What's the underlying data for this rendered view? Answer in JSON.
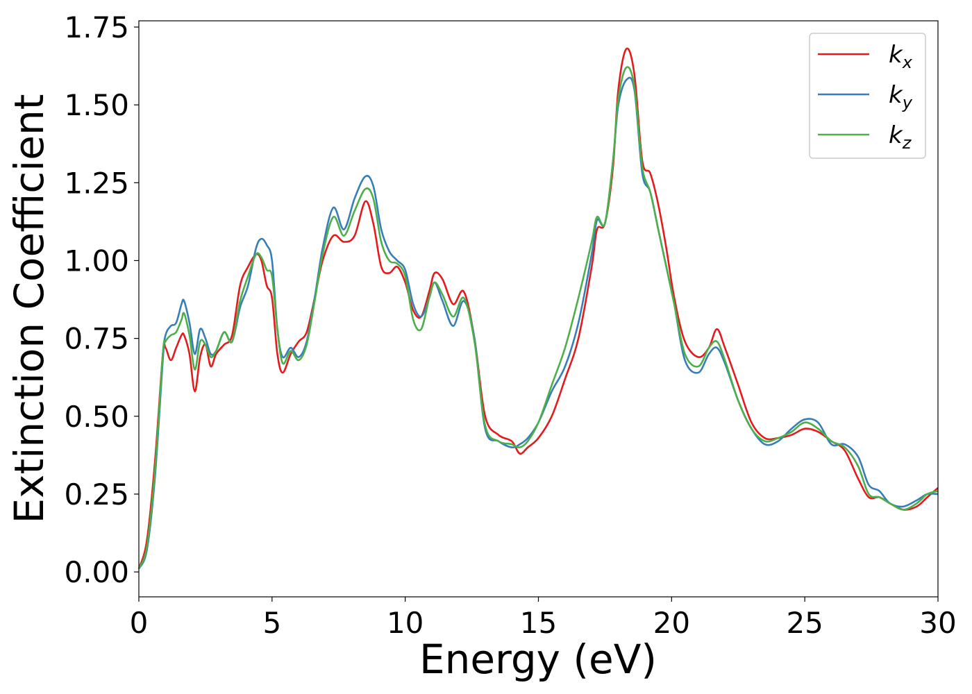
{
  "chart_data": {
    "type": "line",
    "title": "",
    "xlabel": "Energy (eV)",
    "ylabel": "Extinction Coefficient",
    "xlim": [
      0,
      30
    ],
    "ylim": [
      -0.08,
      1.77
    ],
    "xticks": [
      0,
      5,
      10,
      15,
      20,
      25,
      30
    ],
    "xtick_labels": [
      "0",
      "5",
      "10",
      "15",
      "20",
      "25",
      "30"
    ],
    "yticks": [
      0.0,
      0.25,
      0.5,
      0.75,
      1.0,
      1.25,
      1.5,
      1.75
    ],
    "ytick_labels": [
      "0.00",
      "0.25",
      "0.50",
      "0.75",
      "1.00",
      "1.25",
      "1.50",
      "1.75"
    ],
    "grid": false,
    "legend_position": "top-right",
    "series": [
      {
        "name": "k_x",
        "label_main": "k",
        "label_sub": "x",
        "color": "#e41a1c",
        "x": [
          0,
          0.3,
          0.6,
          0.9,
          1.0,
          1.2,
          1.4,
          1.6,
          1.7,
          1.9,
          2.1,
          2.3,
          2.5,
          2.7,
          2.9,
          3.2,
          3.5,
          3.8,
          4.1,
          4.4,
          4.6,
          4.8,
          5.0,
          5.2,
          5.4,
          5.7,
          6.0,
          6.3,
          6.6,
          6.9,
          7.3,
          7.7,
          8.1,
          8.5,
          8.8,
          9.1,
          9.4,
          9.7,
          10.0,
          10.3,
          10.6,
          10.9,
          11.1,
          11.4,
          11.8,
          12.2,
          12.6,
          13.0,
          13.5,
          14.0,
          14.3,
          14.6,
          15.0,
          15.5,
          16.0,
          16.5,
          17.0,
          17.2,
          17.5,
          17.8,
          18.0,
          18.3,
          18.6,
          18.9,
          19.2,
          19.5,
          19.8,
          20.1,
          20.5,
          21.0,
          21.4,
          21.7,
          22.0,
          22.5,
          23.0,
          23.5,
          24.0,
          24.5,
          25.0,
          25.5,
          26.0,
          26.5,
          27.0,
          27.4,
          27.8,
          28.2,
          28.7,
          29.2,
          29.6,
          30.0
        ],
        "values": [
          0.01,
          0.1,
          0.35,
          0.7,
          0.72,
          0.68,
          0.72,
          0.76,
          0.76,
          0.7,
          0.58,
          0.69,
          0.73,
          0.66,
          0.7,
          0.73,
          0.76,
          0.92,
          0.98,
          1.02,
          1.0,
          0.92,
          0.88,
          0.7,
          0.64,
          0.7,
          0.74,
          0.77,
          0.88,
          1.0,
          1.08,
          1.06,
          1.08,
          1.19,
          1.12,
          0.98,
          0.96,
          0.98,
          0.93,
          0.84,
          0.82,
          0.9,
          0.96,
          0.94,
          0.86,
          0.9,
          0.75,
          0.5,
          0.44,
          0.42,
          0.38,
          0.4,
          0.43,
          0.5,
          0.62,
          0.75,
          0.98,
          1.1,
          1.12,
          1.3,
          1.55,
          1.68,
          1.6,
          1.32,
          1.28,
          1.18,
          1.04,
          0.88,
          0.74,
          0.69,
          0.72,
          0.78,
          0.72,
          0.6,
          0.48,
          0.43,
          0.43,
          0.44,
          0.46,
          0.45,
          0.42,
          0.39,
          0.3,
          0.24,
          0.24,
          0.22,
          0.2,
          0.21,
          0.24,
          0.27
        ]
      },
      {
        "name": "k_y",
        "label_main": "k",
        "label_sub": "y",
        "color": "#377eb8",
        "x": [
          0,
          0.3,
          0.6,
          0.9,
          1.0,
          1.2,
          1.4,
          1.6,
          1.7,
          1.9,
          2.1,
          2.3,
          2.5,
          2.7,
          2.9,
          3.2,
          3.5,
          3.8,
          4.1,
          4.4,
          4.6,
          4.8,
          5.0,
          5.2,
          5.4,
          5.7,
          6.0,
          6.3,
          6.6,
          6.9,
          7.3,
          7.7,
          8.1,
          8.5,
          8.8,
          9.1,
          9.4,
          9.7,
          10.0,
          10.3,
          10.6,
          10.9,
          11.1,
          11.4,
          11.8,
          12.2,
          12.6,
          13.0,
          13.5,
          14.0,
          14.3,
          14.6,
          15.0,
          15.5,
          16.0,
          16.5,
          17.0,
          17.2,
          17.5,
          17.8,
          18.0,
          18.3,
          18.6,
          18.9,
          19.2,
          19.5,
          19.8,
          20.1,
          20.5,
          21.0,
          21.4,
          21.7,
          22.0,
          22.5,
          23.0,
          23.5,
          24.0,
          24.5,
          25.0,
          25.5,
          26.0,
          26.5,
          27.0,
          27.4,
          27.8,
          28.2,
          28.7,
          29.2,
          29.6,
          30.0
        ],
        "values": [
          0.01,
          0.07,
          0.3,
          0.68,
          0.76,
          0.79,
          0.8,
          0.86,
          0.87,
          0.8,
          0.7,
          0.78,
          0.75,
          0.7,
          0.71,
          0.77,
          0.74,
          0.85,
          0.92,
          1.04,
          1.07,
          1.05,
          1.0,
          0.78,
          0.69,
          0.72,
          0.69,
          0.74,
          0.88,
          1.04,
          1.17,
          1.1,
          1.2,
          1.27,
          1.24,
          1.1,
          1.03,
          1.0,
          0.97,
          0.86,
          0.82,
          0.88,
          0.93,
          0.87,
          0.79,
          0.87,
          0.75,
          0.46,
          0.42,
          0.4,
          0.41,
          0.43,
          0.48,
          0.58,
          0.66,
          0.8,
          1.02,
          1.13,
          1.12,
          1.32,
          1.5,
          1.58,
          1.55,
          1.28,
          1.22,
          1.1,
          0.98,
          0.86,
          0.68,
          0.64,
          0.7,
          0.72,
          0.67,
          0.55,
          0.46,
          0.41,
          0.42,
          0.46,
          0.49,
          0.48,
          0.41,
          0.41,
          0.37,
          0.28,
          0.26,
          0.22,
          0.21,
          0.23,
          0.25,
          0.25
        ]
      },
      {
        "name": "k_z",
        "label_main": "k",
        "label_sub": "z",
        "color": "#4daf4a",
        "x": [
          0,
          0.3,
          0.6,
          0.9,
          1.0,
          1.2,
          1.4,
          1.6,
          1.7,
          1.9,
          2.1,
          2.3,
          2.5,
          2.7,
          2.9,
          3.2,
          3.5,
          3.8,
          4.1,
          4.4,
          4.6,
          4.8,
          5.0,
          5.2,
          5.4,
          5.7,
          6.0,
          6.3,
          6.6,
          6.9,
          7.3,
          7.7,
          8.1,
          8.5,
          8.8,
          9.1,
          9.4,
          9.7,
          10.0,
          10.3,
          10.6,
          10.9,
          11.1,
          11.4,
          11.8,
          12.2,
          12.6,
          13.0,
          13.5,
          14.0,
          14.3,
          14.6,
          15.0,
          15.5,
          16.0,
          16.5,
          17.0,
          17.2,
          17.5,
          17.8,
          18.0,
          18.3,
          18.6,
          18.9,
          19.2,
          19.5,
          19.8,
          20.1,
          20.5,
          21.0,
          21.4,
          21.7,
          22.0,
          22.5,
          23.0,
          23.5,
          24.0,
          24.5,
          25.0,
          25.5,
          26.0,
          26.5,
          27.0,
          27.4,
          27.8,
          28.2,
          28.7,
          29.2,
          29.6,
          30.0
        ],
        "values": [
          0.01,
          0.08,
          0.32,
          0.7,
          0.74,
          0.76,
          0.77,
          0.81,
          0.83,
          0.76,
          0.65,
          0.74,
          0.73,
          0.69,
          0.71,
          0.77,
          0.74,
          0.87,
          0.95,
          1.02,
          1.01,
          0.97,
          0.95,
          0.78,
          0.67,
          0.71,
          0.68,
          0.73,
          0.87,
          1.02,
          1.14,
          1.08,
          1.16,
          1.23,
          1.2,
          1.06,
          1.0,
          0.99,
          0.95,
          0.81,
          0.78,
          0.88,
          0.93,
          0.89,
          0.82,
          0.88,
          0.74,
          0.47,
          0.42,
          0.41,
          0.4,
          0.42,
          0.48,
          0.6,
          0.72,
          0.88,
          1.06,
          1.14,
          1.12,
          1.32,
          1.52,
          1.62,
          1.56,
          1.3,
          1.22,
          1.1,
          0.98,
          0.86,
          0.7,
          0.66,
          0.72,
          0.74,
          0.68,
          0.55,
          0.46,
          0.42,
          0.43,
          0.45,
          0.48,
          0.46,
          0.42,
          0.4,
          0.34,
          0.25,
          0.24,
          0.22,
          0.2,
          0.22,
          0.25,
          0.26
        ]
      }
    ]
  }
}
